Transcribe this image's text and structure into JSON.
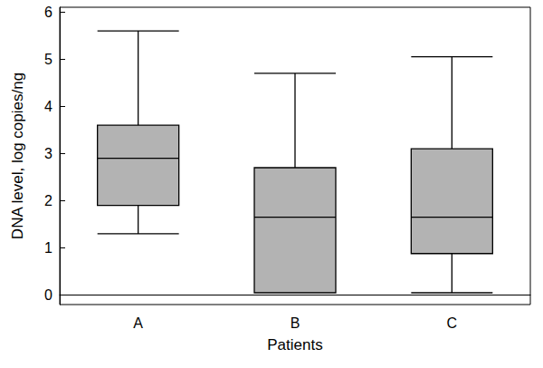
{
  "chart_data": {
    "type": "boxplot",
    "xlabel": "Patients",
    "ylabel": "DNA level, log copies/ng",
    "categories": [
      "A",
      "B",
      "C"
    ],
    "values": [
      [
        1.3,
        1.9,
        2.9,
        3.6,
        5.6
      ],
      [
        0.05,
        0.05,
        1.65,
        2.7,
        4.7
      ],
      [
        0.05,
        0.88,
        1.65,
        3.1,
        5.05
      ]
    ],
    "color": "#b3b3b3",
    "ylim": [
      -0.2,
      6.1
    ],
    "yticks": [
      0,
      1,
      2,
      3,
      4,
      5,
      6
    ],
    "grid": false
  }
}
